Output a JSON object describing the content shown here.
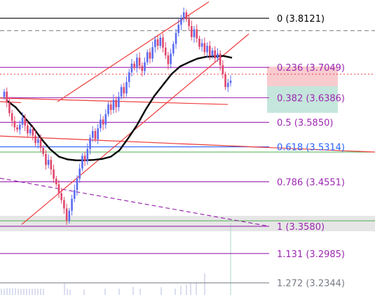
{
  "colors": {
    "up": "#5b6cf0",
    "down": "#e0466a",
    "channel": "#ef3b3b",
    "ma": "#000000",
    "fib_purple": "#9c27b0",
    "fib_blue": "#2962ff",
    "fib_black": "#000000",
    "fib_gray": "#787b86",
    "green": "#4caf50",
    "dashed_gray": "#777777",
    "current_price": "#ef3b3b"
  },
  "chart_data": {
    "type": "candlestick",
    "price_range": [
      3.208,
      3.852
    ],
    "fib_levels": [
      {
        "ratio": "0",
        "price": 3.8121,
        "label": "0 (3.8121)",
        "color_key": "fib_black"
      },
      {
        "ratio": "0.236",
        "price": 3.7049,
        "label": "0.236 (3.7049)",
        "color_key": "fib_purple"
      },
      {
        "ratio": "0.382",
        "price": 3.6386,
        "label": "0.382 (3.6386)",
        "color_key": "fib_purple"
      },
      {
        "ratio": "0.5",
        "price": 3.585,
        "label": "0.5 (3.5850)",
        "color_key": "fib_purple"
      },
      {
        "ratio": "0.618",
        "price": 3.5314,
        "label": "0.618 (3.5314)",
        "color_key": "fib_blue"
      },
      {
        "ratio": "0.786",
        "price": 3.4551,
        "label": "0.786 (3.4551)",
        "color_key": "fib_purple"
      },
      {
        "ratio": "1",
        "price": 3.358,
        "label": "1 (3.3580)",
        "color_key": "fib_purple"
      },
      {
        "ratio": "1.131",
        "price": 3.2985,
        "label": "1.131 (3.2985)",
        "color_key": "fib_purple"
      },
      {
        "ratio": "1.272",
        "price": 3.2344,
        "label": "1.272 (3.2344)",
        "color_key": "fib_gray"
      }
    ],
    "horizontal_lines": [
      {
        "price": 3.785,
        "style": "dashed",
        "color_key": "dashed_gray"
      },
      {
        "price": 3.69,
        "style": "dotted",
        "color_key": "current_price"
      },
      {
        "price": 3.52,
        "style": "solid",
        "color_key": "green"
      },
      {
        "price": 3.37,
        "style": "solid",
        "color_key": "green"
      }
    ],
    "candle_closes": [
      3.652,
      3.628,
      3.605,
      3.588,
      3.574,
      3.569,
      3.58,
      3.595,
      3.578,
      3.561,
      3.57,
      3.556,
      3.54,
      3.548,
      3.529,
      3.516,
      3.492,
      3.503,
      3.482,
      3.462,
      3.45,
      3.43,
      3.415,
      3.397,
      3.37,
      3.392,
      3.418,
      3.437,
      3.462,
      3.484,
      3.512,
      3.5,
      3.527,
      3.551,
      3.566,
      3.548,
      3.572,
      3.591,
      3.58,
      3.603,
      3.624,
      3.612,
      3.634,
      3.618,
      3.641,
      3.662,
      3.648,
      3.673,
      3.694,
      3.713,
      3.704,
      3.726,
      3.708,
      3.697,
      3.716,
      3.738,
      3.724,
      3.749,
      3.766,
      3.752,
      3.77,
      3.748,
      3.731,
      3.712,
      3.735,
      3.756,
      3.78,
      3.798,
      3.812,
      3.825,
      3.81,
      3.795,
      3.771,
      3.788,
      3.768,
      3.75,
      3.758,
      3.738,
      3.752,
      3.73,
      3.742,
      3.725,
      3.735,
      3.71,
      3.69,
      3.662,
      3.671,
      3.676
    ],
    "moving_average": [
      3.632,
      3.618,
      3.596,
      3.574,
      3.548,
      3.526,
      3.51,
      3.504,
      3.502,
      3.502,
      3.503,
      3.505,
      3.51,
      3.524,
      3.55,
      3.578,
      3.612,
      3.642,
      3.666,
      3.69,
      3.707,
      3.716,
      3.724,
      3.728,
      3.729,
      3.73,
      3.726
    ],
    "channel_upper": [
      [
        3.63,
        3.625
      ],
      [
        3.71,
        3.754
      ],
      [
        3.73,
        3.848
      ]
    ],
    "channel_lower": [
      [
        3.362,
        3.368
      ],
      [
        3.68,
        3.778
      ]
    ],
    "support_line": [
      [
        3.638,
        3.624
      ],
      [
        3.555,
        3.52
      ]
    ],
    "dashed_support": [
      [
        3.463,
        3.45
      ],
      [
        3.397,
        3.358
      ]
    ],
    "volume_bars": [
      3.222,
      3.222,
      3.223,
      3.223,
      3.223,
      3.223,
      3.222,
      3.222,
      3.222,
      3.222,
      3.222,
      3.222,
      3.222,
      3.222,
      3.222,
      3.222,
      3.233,
      3.222,
      3.22,
      3.22,
      3.222,
      3.222,
      3.226,
      3.222,
      3.225,
      3.222,
      3.228,
      3.231,
      3.233,
      3.235,
      3.255,
      3.365
    ]
  }
}
